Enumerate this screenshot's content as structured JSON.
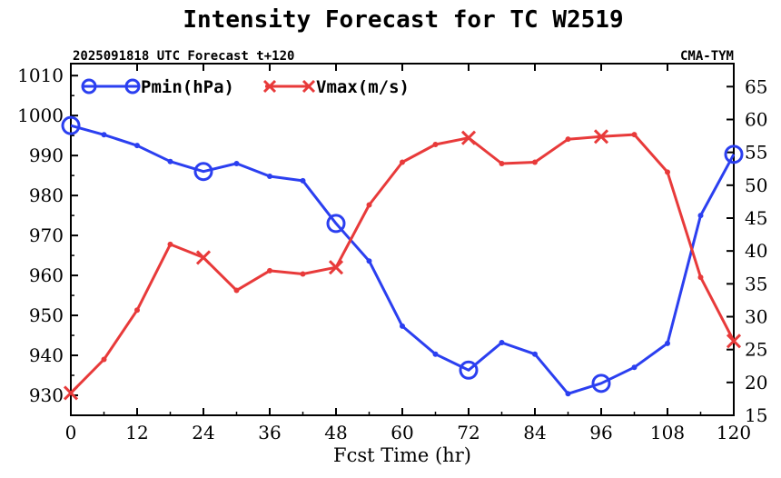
{
  "chart_data": {
    "type": "line",
    "title": "Intensity Forecast for TC W2519",
    "subtitle_left": "2025091818 UTC Forecast t+120",
    "subtitle_right": "CMA-TYM",
    "xlabel": "Fcst Time (hr)",
    "xlim": [
      0,
      120
    ],
    "x_ticks": [
      0,
      12,
      24,
      36,
      48,
      60,
      72,
      84,
      96,
      108,
      120
    ],
    "y_left_lim": [
      925,
      1013
    ],
    "y_left_ticks": [
      930,
      940,
      950,
      960,
      970,
      980,
      990,
      1000,
      1010
    ],
    "y_right_lim": [
      15,
      68.5
    ],
    "y_right_ticks": [
      15,
      20,
      25,
      30,
      35,
      40,
      45,
      50,
      55,
      60,
      65
    ],
    "x": [
      0,
      6,
      12,
      18,
      24,
      30,
      36,
      42,
      48,
      54,
      60,
      66,
      72,
      78,
      84,
      90,
      96,
      102,
      108,
      114,
      120
    ],
    "series": [
      {
        "name": "Pmin(hPa)",
        "axis": "left",
        "color": "#2b3ff0",
        "marker": "circle",
        "values": [
          997.5,
          995.2,
          992.5,
          988.5,
          986,
          988,
          984.8,
          983.7,
          973,
          963.6,
          947.3,
          940.3,
          936.3,
          943.2,
          940.3,
          930.4,
          933,
          937,
          943,
          975,
          990.3
        ],
        "major_marker_x": [
          0,
          24,
          48,
          72,
          96,
          120
        ]
      },
      {
        "name": "Vmax(m/s)",
        "axis": "right",
        "color": "#e83a3a",
        "marker": "x",
        "values": [
          18.4,
          23.5,
          31,
          41,
          39,
          34,
          37,
          36.5,
          37.5,
          47,
          53.5,
          56.2,
          57.2,
          53.3,
          53.5,
          57,
          57.4,
          57.7,
          52,
          36,
          26.3
        ],
        "major_marker_x": [
          0,
          24,
          48,
          72,
          96,
          120
        ]
      }
    ],
    "legend_placement": "top-left",
    "grid": false
  }
}
